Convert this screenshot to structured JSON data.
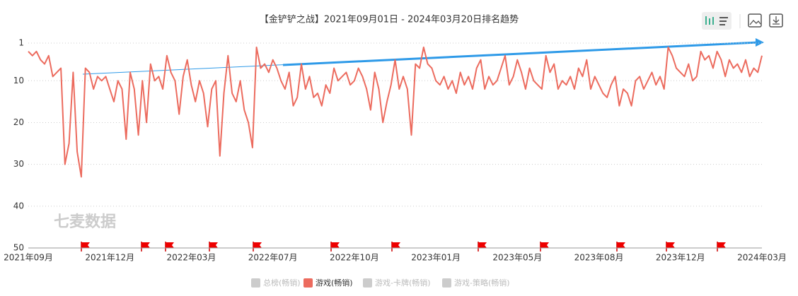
{
  "chart_data": {
    "type": "line",
    "title": "【金铲铲之战】2021年09月01日 - 2024年03月20日排名趋势",
    "watermark": "七麦数据",
    "categories": [
      "2021年09月",
      null,
      null,
      null,
      null,
      null,
      null,
      null,
      null,
      null,
      null,
      null,
      null,
      null,
      null,
      null,
      null,
      null,
      null,
      null,
      "2021年12月",
      null,
      null,
      null,
      null,
      null,
      null,
      null,
      null,
      null,
      null,
      null,
      null,
      null,
      null,
      null,
      null,
      null,
      null,
      null,
      "2022年03月",
      null,
      null,
      null,
      null,
      null,
      null,
      null,
      null,
      null,
      null,
      null,
      null,
      null,
      null,
      null,
      null,
      null,
      null,
      null,
      "2022年07月",
      null,
      null,
      null,
      null,
      null,
      null,
      null,
      null,
      null,
      null,
      null,
      null,
      null,
      null,
      null,
      null,
      null,
      null,
      null,
      "2022年10月",
      null,
      null,
      null,
      null,
      null,
      null,
      null,
      null,
      null,
      null,
      null,
      null,
      null,
      null,
      null,
      null,
      null,
      null,
      null,
      "2023年01月",
      null,
      null,
      null,
      null,
      null,
      null,
      null,
      null,
      null,
      null,
      null,
      null,
      null,
      null,
      null,
      null,
      null,
      null,
      null,
      "2023年05月",
      null,
      null,
      null,
      null,
      null,
      null,
      null,
      null,
      null,
      null,
      null,
      null,
      null,
      null,
      null,
      null,
      null,
      null,
      null,
      "2023年08月",
      null,
      null,
      null,
      null,
      null,
      null,
      null,
      null,
      null,
      null,
      null,
      null,
      null,
      null,
      null,
      null,
      null,
      null,
      null,
      "2023年12月",
      null,
      null,
      null,
      null,
      null,
      null,
      null,
      null,
      null,
      null,
      null,
      null,
      null,
      null,
      null,
      null,
      null,
      null,
      null,
      "2024年03月"
    ],
    "series": [
      {
        "name": "游戏(畅销)",
        "color": "#ec6b5e",
        "values": [
          3,
          4,
          3,
          5,
          6,
          4,
          9,
          8,
          7,
          30,
          25,
          8,
          27,
          33,
          7,
          8,
          12,
          9,
          10,
          9,
          12,
          15,
          10,
          12,
          24,
          8,
          12,
          23,
          10,
          20,
          6,
          10,
          9,
          12,
          4,
          8,
          10,
          18,
          9,
          5,
          11,
          15,
          10,
          13,
          21,
          12,
          10,
          28,
          13,
          4,
          13,
          15,
          10,
          17,
          20,
          26,
          2,
          7,
          6,
          8,
          5,
          7,
          10,
          12,
          8,
          16,
          14,
          6,
          12,
          9,
          14,
          13,
          16,
          11,
          13,
          7,
          10,
          9,
          8,
          11,
          10,
          7,
          9,
          12,
          17,
          8,
          12,
          20,
          15,
          11,
          5,
          12,
          9,
          12,
          23,
          6,
          7,
          2,
          6,
          7,
          10,
          11,
          9,
          12,
          10,
          13,
          8,
          11,
          9,
          12,
          7,
          5,
          12,
          9,
          11,
          10,
          7,
          4,
          11,
          9,
          5,
          8,
          12,
          7,
          10,
          11,
          12,
          4,
          8,
          6,
          12,
          10,
          11,
          9,
          12,
          7,
          9,
          5,
          12,
          9,
          11,
          13,
          14,
          11,
          9,
          16,
          12,
          13,
          16,
          10,
          9,
          12,
          10,
          8,
          11,
          9,
          12,
          2,
          4,
          7,
          8,
          9,
          6,
          10,
          9,
          3,
          5,
          4,
          7,
          3,
          5,
          9,
          5,
          7,
          6,
          8,
          5,
          9,
          7,
          8,
          4
        ]
      }
    ],
    "inactive_legend": [
      "总榜(畅销)",
      "游戏-卡牌(畅销)",
      "游戏-策略(畅销)"
    ],
    "inactive_color": "#ccc",
    "ylim": [
      1,
      50
    ],
    "y_inverted": true,
    "yticks": [
      1,
      10,
      20,
      30,
      40,
      50
    ],
    "grid": true
  }
}
